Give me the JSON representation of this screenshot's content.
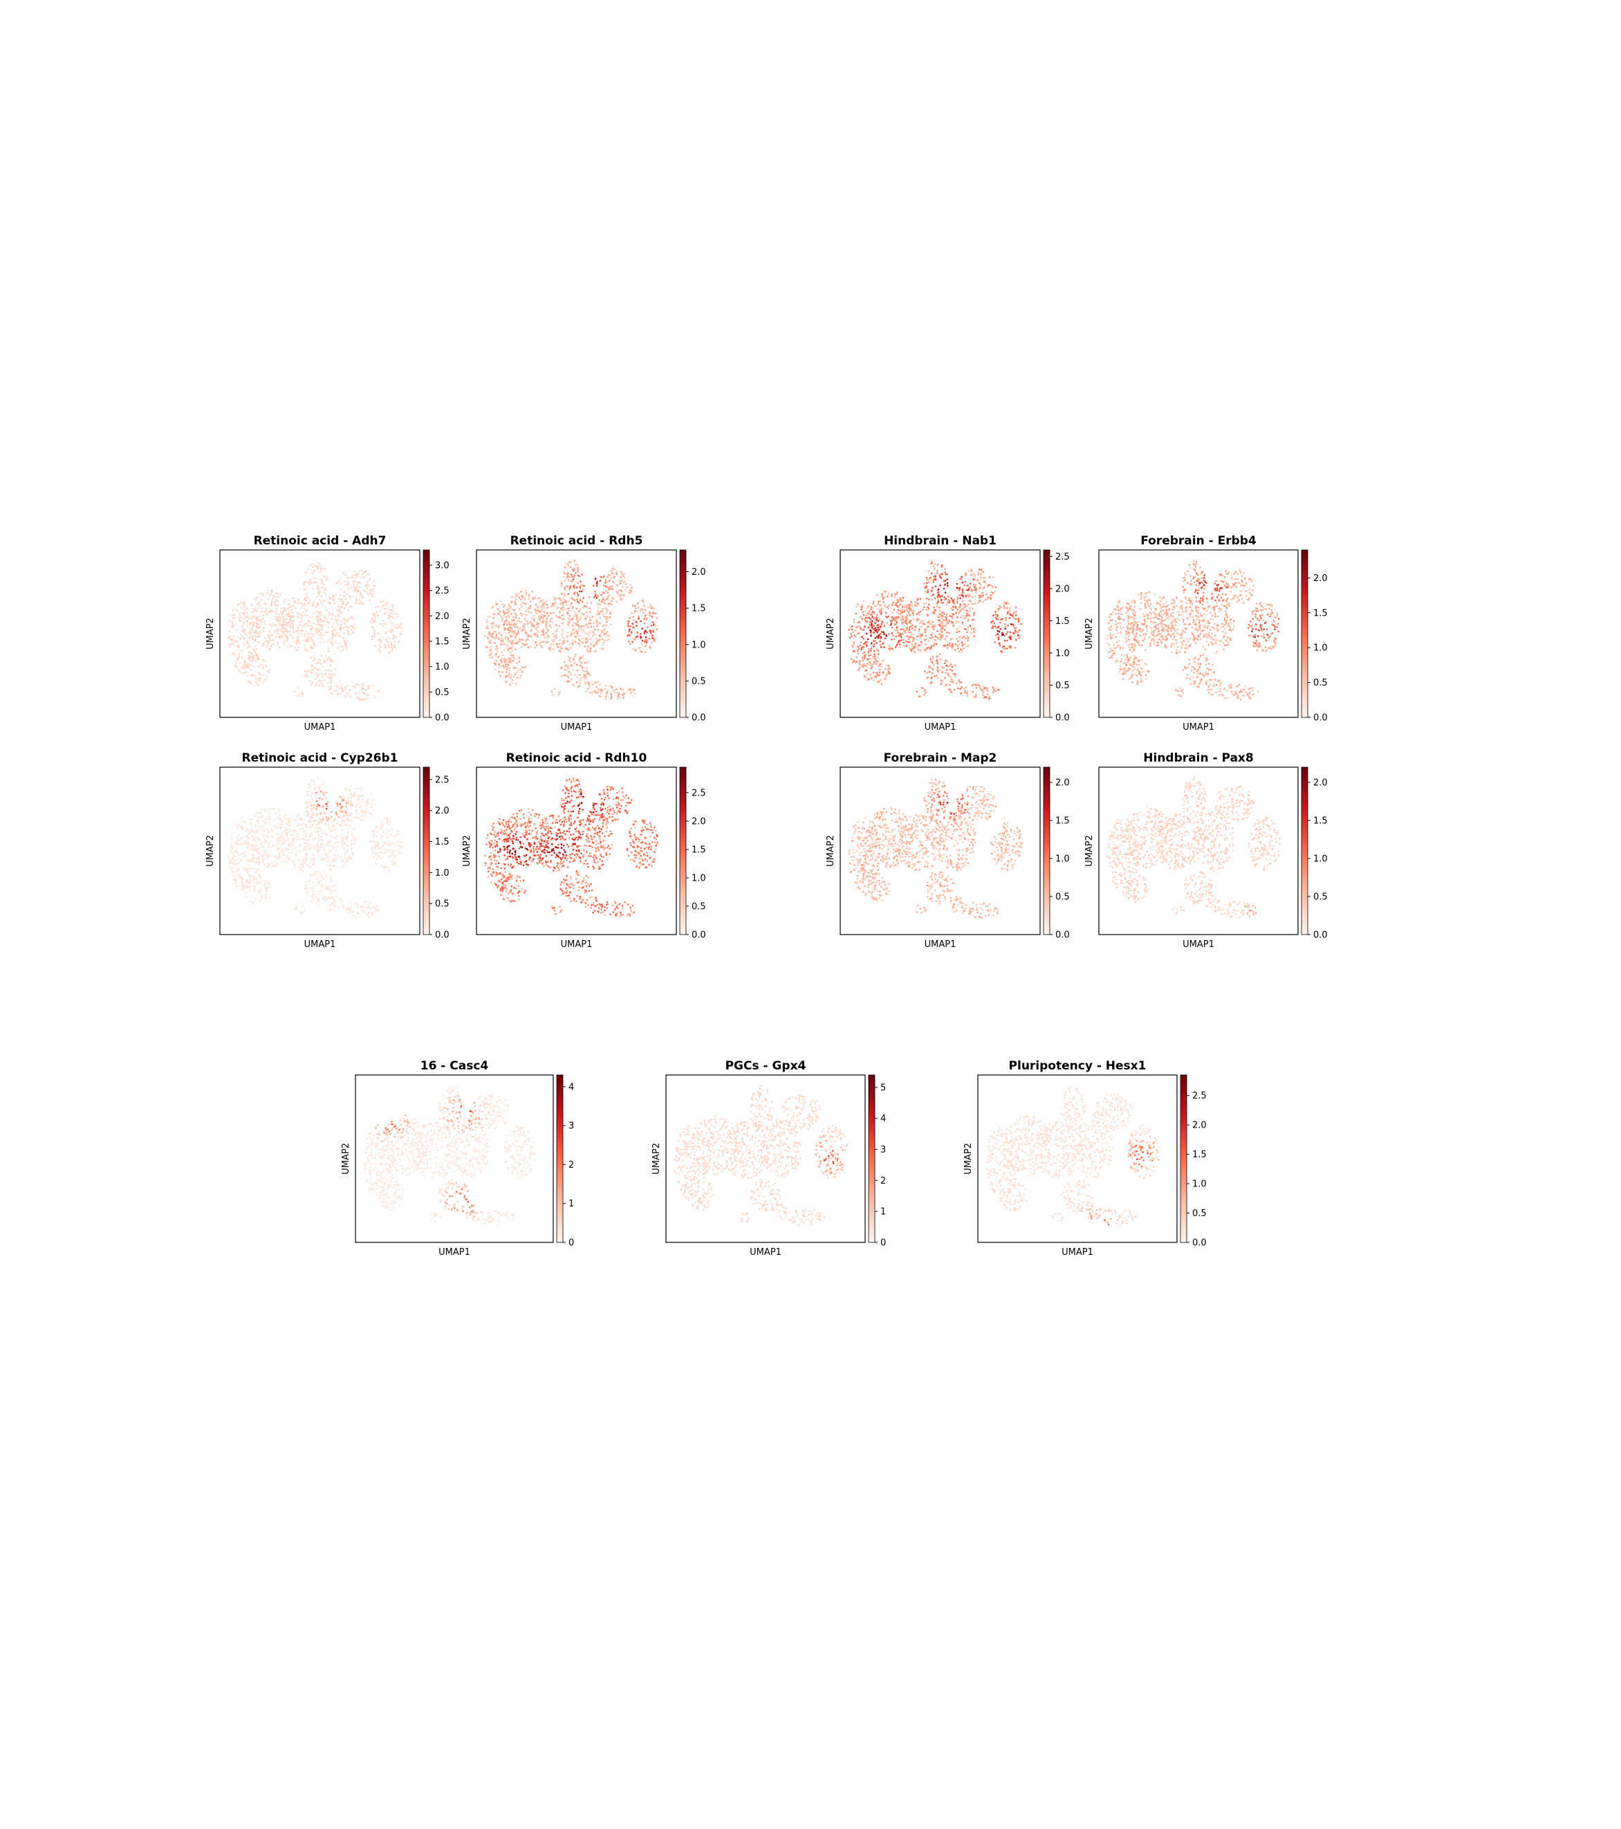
{
  "colormap": {
    "name": "Reds",
    "low": "#fff5f0",
    "mid": "#fb6a4a",
    "high": "#67000d"
  },
  "chart_data": [
    {
      "type": "scatter",
      "title": "Retinoic acid - Adh7",
      "xlabel": "UMAP1",
      "ylabel": "UMAP2",
      "colorbar": {
        "min": 0,
        "max": 3.3,
        "ticks": [
          "0.0",
          "0.5",
          "1.0",
          "1.5",
          "2.0",
          "2.5",
          "3.0"
        ]
      },
      "intensity": 0.22,
      "hotspots": []
    },
    {
      "type": "scatter",
      "title": "Retinoic acid - Rdh5",
      "xlabel": "UMAP1",
      "ylabel": "UMAP2",
      "colorbar": {
        "min": 0,
        "max": 2.3,
        "ticks": [
          "0.0",
          "0.5",
          "1.0",
          "1.5",
          "2.0"
        ]
      },
      "intensity": 0.45,
      "hotspots": [
        "upper-center",
        "right"
      ]
    },
    {
      "type": "scatter",
      "title": "Hindbrain - Nab1",
      "xlabel": "UMAP1",
      "ylabel": "UMAP2",
      "colorbar": {
        "min": 0,
        "max": 2.6,
        "ticks": [
          "0.0",
          "0.5",
          "1.0",
          "1.5",
          "2.0",
          "2.5"
        ]
      },
      "intensity": 0.6,
      "hotspots": [
        "left",
        "upper-center",
        "right"
      ]
    },
    {
      "type": "scatter",
      "title": "Forebrain - Erbb4",
      "xlabel": "UMAP1",
      "ylabel": "UMAP2",
      "colorbar": {
        "min": 0,
        "max": 2.4,
        "ticks": [
          "0.0",
          "0.5",
          "1.0",
          "1.5",
          "2.0"
        ]
      },
      "intensity": 0.45,
      "hotspots": [
        "upper-center",
        "right"
      ]
    },
    {
      "type": "scatter",
      "title": "Retinoic acid - Cyp26b1",
      "xlabel": "UMAP1",
      "ylabel": "UMAP2",
      "colorbar": {
        "min": 0,
        "max": 2.7,
        "ticks": [
          "0.0",
          "0.5",
          "1.0",
          "1.5",
          "2.0",
          "2.5"
        ]
      },
      "intensity": 0.12,
      "hotspots": [
        "upper-center"
      ]
    },
    {
      "type": "scatter",
      "title": "Retinoic acid - Rdh10",
      "xlabel": "UMAP1",
      "ylabel": "UMAP2",
      "colorbar": {
        "min": 0,
        "max": 2.95,
        "ticks": [
          "0.0",
          "0.5",
          "1.0",
          "1.5",
          "2.0",
          "2.5"
        ]
      },
      "intensity": 0.7,
      "hotspots": [
        "left",
        "upper-center",
        "center"
      ]
    },
    {
      "type": "scatter",
      "title": "Forebrain - Map2",
      "xlabel": "UMAP1",
      "ylabel": "UMAP2",
      "colorbar": {
        "min": 0,
        "max": 2.2,
        "ticks": [
          "0.0",
          "0.5",
          "1.0",
          "1.5",
          "2.0"
        ]
      },
      "intensity": 0.4,
      "hotspots": [
        "upper-center"
      ]
    },
    {
      "type": "scatter",
      "title": "Hindbrain - Pax8",
      "xlabel": "UMAP1",
      "ylabel": "UMAP2",
      "colorbar": {
        "min": 0,
        "max": 2.2,
        "ticks": [
          "0.0",
          "0.5",
          "1.0",
          "1.5",
          "2.0"
        ]
      },
      "intensity": 0.25,
      "hotspots": [
        "lower-right"
      ]
    },
    {
      "type": "scatter",
      "title": "16 - Casc4",
      "xlabel": "UMAP1",
      "ylabel": "UMAP2",
      "colorbar": {
        "min": 0,
        "max": 4.3,
        "ticks": [
          "0",
          "1",
          "2",
          "3",
          "4"
        ]
      },
      "intensity": 0.1,
      "hotspots": [
        "upper-left",
        "upper-center",
        "lower-center"
      ]
    },
    {
      "type": "scatter",
      "title": "PGCs - Gpx4",
      "xlabel": "UMAP1",
      "ylabel": "UMAP2",
      "colorbar": {
        "min": 0,
        "max": 5.4,
        "ticks": [
          "0",
          "1",
          "2",
          "3",
          "4",
          "5"
        ]
      },
      "intensity": 0.2,
      "hotspots": [
        "right"
      ]
    },
    {
      "type": "scatter",
      "title": "Pluripotency - Hesx1",
      "xlabel": "UMAP1",
      "ylabel": "UMAP2",
      "colorbar": {
        "min": 0,
        "max": 2.85,
        "ticks": [
          "0.0",
          "0.5",
          "1.0",
          "1.5",
          "2.0",
          "2.5"
        ]
      },
      "intensity": 0.15,
      "hotspots": [
        "right",
        "bottom"
      ]
    }
  ]
}
